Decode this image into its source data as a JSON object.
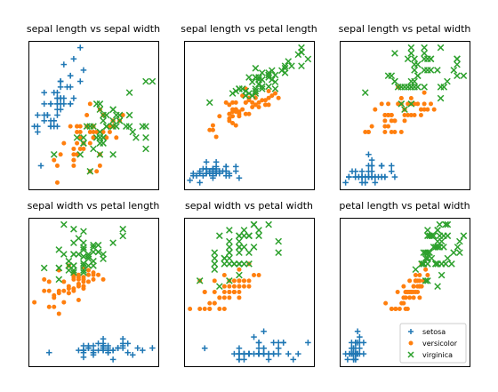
{
  "chart_data": {
    "type": "scatter",
    "grid": false,
    "legend": {
      "placement": "lower-right of last panel",
      "entries": [
        {
          "name": "setosa",
          "marker": "+",
          "color": "#1f77b4"
        },
        {
          "name": "versicolor",
          "marker": "o",
          "color": "#ff7f0e"
        },
        {
          "name": "virginica",
          "marker": "x",
          "color": "#2ca02c"
        }
      ]
    },
    "series_colors": {
      "setosa": "#1f77b4",
      "versicolor": "#ff7f0e",
      "virginica": "#2ca02c"
    },
    "features": [
      "sepal length",
      "sepal width",
      "petal length",
      "petal width"
    ],
    "panels": [
      {
        "title": "sepal length vs sepal width",
        "x": "sepal length",
        "y": "sepal width"
      },
      {
        "title": "sepal length vs petal length",
        "x": "sepal length",
        "y": "petal length"
      },
      {
        "title": "sepal length vs petal width",
        "x": "sepal length",
        "y": "petal width"
      },
      {
        "title": "sepal width vs petal length",
        "x": "sepal width",
        "y": "petal length"
      },
      {
        "title": "sepal width vs petal width",
        "x": "sepal width",
        "y": "petal width"
      },
      {
        "title": "petal length vs petal width",
        "x": "petal length",
        "y": "petal width"
      }
    ],
    "columns": [
      "sepal length",
      "sepal width",
      "petal length",
      "petal width"
    ],
    "data": {
      "setosa": [
        [
          5.1,
          3.5,
          1.4,
          0.2
        ],
        [
          4.9,
          3.0,
          1.4,
          0.2
        ],
        [
          4.7,
          3.2,
          1.3,
          0.2
        ],
        [
          4.6,
          3.1,
          1.5,
          0.2
        ],
        [
          5.0,
          3.6,
          1.4,
          0.2
        ],
        [
          5.4,
          3.9,
          1.7,
          0.4
        ],
        [
          4.6,
          3.4,
          1.4,
          0.3
        ],
        [
          5.0,
          3.4,
          1.5,
          0.2
        ],
        [
          4.4,
          2.9,
          1.4,
          0.2
        ],
        [
          4.9,
          3.1,
          1.5,
          0.1
        ],
        [
          5.4,
          3.7,
          1.5,
          0.2
        ],
        [
          4.8,
          3.4,
          1.6,
          0.2
        ],
        [
          4.8,
          3.0,
          1.4,
          0.1
        ],
        [
          4.3,
          3.0,
          1.1,
          0.1
        ],
        [
          5.8,
          4.0,
          1.2,
          0.2
        ],
        [
          5.7,
          4.4,
          1.5,
          0.4
        ],
        [
          5.4,
          3.9,
          1.3,
          0.4
        ],
        [
          5.1,
          3.5,
          1.4,
          0.3
        ],
        [
          5.7,
          3.8,
          1.7,
          0.3
        ],
        [
          5.1,
          3.8,
          1.5,
          0.3
        ],
        [
          5.4,
          3.4,
          1.7,
          0.2
        ],
        [
          5.1,
          3.7,
          1.5,
          0.4
        ],
        [
          4.6,
          3.6,
          1.0,
          0.2
        ],
        [
          5.1,
          3.3,
          1.7,
          0.5
        ],
        [
          4.8,
          3.4,
          1.9,
          0.2
        ],
        [
          5.0,
          3.0,
          1.6,
          0.2
        ],
        [
          5.0,
          3.4,
          1.6,
          0.4
        ],
        [
          5.2,
          3.5,
          1.5,
          0.2
        ],
        [
          5.2,
          3.4,
          1.4,
          0.2
        ],
        [
          4.7,
          3.2,
          1.6,
          0.2
        ],
        [
          4.8,
          3.1,
          1.6,
          0.2
        ],
        [
          5.4,
          3.4,
          1.5,
          0.4
        ],
        [
          5.2,
          4.1,
          1.5,
          0.1
        ],
        [
          5.5,
          4.2,
          1.4,
          0.2
        ],
        [
          4.9,
          3.1,
          1.5,
          0.2
        ],
        [
          5.0,
          3.2,
          1.2,
          0.2
        ],
        [
          5.5,
          3.5,
          1.3,
          0.2
        ],
        [
          4.9,
          3.6,
          1.4,
          0.1
        ],
        [
          4.4,
          3.0,
          1.3,
          0.2
        ],
        [
          5.1,
          3.4,
          1.5,
          0.2
        ],
        [
          5.0,
          3.5,
          1.3,
          0.3
        ],
        [
          4.5,
          2.3,
          1.3,
          0.3
        ],
        [
          4.4,
          3.2,
          1.3,
          0.2
        ],
        [
          5.0,
          3.5,
          1.6,
          0.6
        ],
        [
          5.1,
          3.8,
          1.9,
          0.4
        ],
        [
          4.8,
          3.0,
          1.4,
          0.3
        ],
        [
          5.1,
          3.8,
          1.6,
          0.2
        ],
        [
          4.6,
          3.2,
          1.4,
          0.2
        ],
        [
          5.3,
          3.7,
          1.5,
          0.2
        ],
        [
          5.0,
          3.3,
          1.4,
          0.2
        ]
      ],
      "versicolor": [
        [
          7.0,
          3.2,
          4.7,
          1.4
        ],
        [
          6.4,
          3.2,
          4.5,
          1.5
        ],
        [
          6.9,
          3.1,
          4.9,
          1.5
        ],
        [
          5.5,
          2.3,
          4.0,
          1.3
        ],
        [
          6.5,
          2.8,
          4.6,
          1.5
        ],
        [
          5.7,
          2.8,
          4.5,
          1.3
        ],
        [
          6.3,
          3.3,
          4.7,
          1.6
        ],
        [
          4.9,
          2.4,
          3.3,
          1.0
        ],
        [
          6.6,
          2.9,
          4.6,
          1.3
        ],
        [
          5.2,
          2.7,
          3.9,
          1.4
        ],
        [
          5.0,
          2.0,
          3.5,
          1.0
        ],
        [
          5.9,
          3.0,
          4.2,
          1.5
        ],
        [
          6.0,
          2.2,
          4.0,
          1.0
        ],
        [
          6.1,
          2.9,
          4.7,
          1.4
        ],
        [
          5.6,
          2.9,
          3.6,
          1.3
        ],
        [
          6.7,
          3.1,
          4.4,
          1.4
        ],
        [
          5.6,
          3.0,
          4.5,
          1.5
        ],
        [
          5.8,
          2.7,
          4.1,
          1.0
        ],
        [
          6.2,
          2.2,
          4.5,
          1.5
        ],
        [
          5.6,
          2.5,
          3.9,
          1.1
        ],
        [
          5.9,
          3.2,
          4.8,
          1.8
        ],
        [
          6.1,
          2.8,
          4.0,
          1.3
        ],
        [
          6.3,
          2.5,
          4.9,
          1.5
        ],
        [
          6.1,
          2.8,
          4.7,
          1.2
        ],
        [
          6.4,
          2.9,
          4.3,
          1.3
        ],
        [
          6.6,
          3.0,
          4.4,
          1.4
        ],
        [
          6.8,
          2.8,
          4.8,
          1.4
        ],
        [
          6.7,
          3.0,
          5.0,
          1.7
        ],
        [
          6.0,
          2.9,
          4.5,
          1.5
        ],
        [
          5.7,
          2.6,
          3.5,
          1.0
        ],
        [
          5.5,
          2.4,
          3.8,
          1.1
        ],
        [
          5.5,
          2.4,
          3.7,
          1.0
        ],
        [
          5.8,
          2.7,
          3.9,
          1.2
        ],
        [
          6.0,
          2.7,
          5.1,
          1.6
        ],
        [
          5.4,
          3.0,
          4.5,
          1.5
        ],
        [
          6.0,
          3.4,
          4.5,
          1.6
        ],
        [
          6.7,
          3.1,
          4.7,
          1.5
        ],
        [
          6.3,
          2.3,
          4.4,
          1.3
        ],
        [
          5.6,
          3.0,
          4.1,
          1.3
        ],
        [
          5.5,
          2.5,
          4.0,
          1.3
        ],
        [
          5.5,
          2.6,
          4.4,
          1.2
        ],
        [
          6.1,
          3.0,
          4.6,
          1.4
        ],
        [
          5.8,
          2.6,
          4.0,
          1.2
        ],
        [
          5.0,
          2.3,
          3.3,
          1.0
        ],
        [
          5.6,
          2.7,
          4.2,
          1.3
        ],
        [
          5.7,
          3.0,
          4.2,
          1.2
        ],
        [
          5.7,
          2.9,
          4.2,
          1.3
        ],
        [
          6.2,
          2.9,
          4.3,
          1.3
        ],
        [
          5.1,
          2.5,
          3.0,
          1.1
        ],
        [
          5.7,
          2.8,
          4.1,
          1.3
        ]
      ],
      "virginica": [
        [
          6.3,
          3.3,
          6.0,
          2.5
        ],
        [
          5.8,
          2.7,
          5.1,
          1.9
        ],
        [
          7.1,
          3.0,
          5.9,
          2.1
        ],
        [
          6.3,
          2.9,
          5.6,
          1.8
        ],
        [
          6.5,
          3.0,
          5.8,
          2.2
        ],
        [
          7.6,
          3.0,
          6.6,
          2.1
        ],
        [
          4.9,
          2.5,
          4.5,
          1.7
        ],
        [
          7.3,
          2.9,
          6.3,
          1.8
        ],
        [
          6.7,
          2.5,
          5.8,
          1.8
        ],
        [
          7.2,
          3.6,
          6.1,
          2.5
        ],
        [
          6.5,
          3.2,
          5.1,
          2.0
        ],
        [
          6.4,
          2.7,
          5.3,
          1.9
        ],
        [
          6.8,
          3.0,
          5.5,
          2.1
        ],
        [
          5.7,
          2.5,
          5.0,
          2.0
        ],
        [
          5.8,
          2.8,
          5.1,
          2.4
        ],
        [
          6.4,
          3.2,
          5.3,
          2.3
        ],
        [
          6.5,
          3.0,
          5.5,
          1.8
        ],
        [
          7.7,
          3.8,
          6.7,
          2.2
        ],
        [
          7.7,
          2.6,
          6.9,
          2.3
        ],
        [
          6.0,
          2.2,
          5.0,
          1.5
        ],
        [
          6.9,
          3.2,
          5.7,
          2.3
        ],
        [
          5.6,
          2.8,
          4.9,
          2.0
        ],
        [
          7.7,
          2.8,
          6.7,
          2.0
        ],
        [
          6.3,
          2.7,
          4.9,
          1.8
        ],
        [
          6.7,
          3.3,
          5.7,
          2.1
        ],
        [
          7.2,
          3.2,
          6.0,
          1.8
        ],
        [
          6.2,
          2.8,
          4.8,
          1.8
        ],
        [
          6.1,
          3.0,
          4.9,
          1.8
        ],
        [
          6.4,
          2.8,
          5.6,
          2.1
        ],
        [
          7.2,
          3.0,
          5.8,
          1.6
        ],
        [
          7.4,
          2.8,
          6.1,
          1.9
        ],
        [
          7.9,
          3.8,
          6.4,
          2.0
        ],
        [
          6.4,
          2.8,
          5.6,
          2.2
        ],
        [
          6.3,
          2.8,
          5.1,
          1.5
        ],
        [
          6.1,
          2.6,
          5.6,
          1.4
        ],
        [
          7.7,
          3.0,
          6.1,
          2.3
        ],
        [
          6.3,
          3.4,
          5.6,
          2.4
        ],
        [
          6.4,
          3.1,
          5.5,
          1.8
        ],
        [
          6.0,
          3.0,
          4.8,
          1.8
        ],
        [
          6.9,
          3.1,
          5.4,
          2.1
        ],
        [
          6.7,
          3.1,
          5.6,
          2.4
        ],
        [
          6.9,
          3.1,
          5.1,
          2.3
        ],
        [
          5.8,
          2.7,
          5.1,
          1.9
        ],
        [
          6.8,
          3.2,
          5.9,
          2.3
        ],
        [
          6.7,
          3.3,
          5.7,
          2.5
        ],
        [
          6.7,
          3.0,
          5.2,
          2.3
        ],
        [
          6.3,
          2.5,
          5.0,
          1.9
        ],
        [
          6.5,
          3.0,
          5.2,
          2.0
        ],
        [
          6.2,
          3.4,
          5.4,
          2.3
        ],
        [
          5.9,
          3.0,
          5.1,
          1.8
        ]
      ]
    }
  }
}
